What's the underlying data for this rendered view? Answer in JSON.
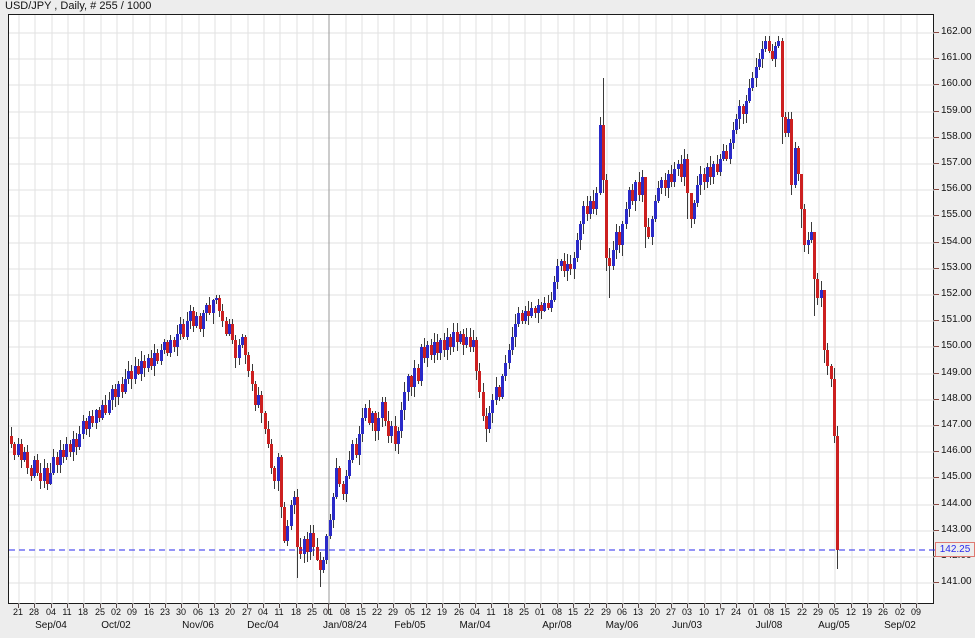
{
  "window": {
    "title": "USD/JPY , Daily, # 255 / 1000"
  },
  "colors": {
    "background": "#ededed",
    "plot_background": "#ffffff",
    "grid": "#e2e2e2",
    "separator": "#9a9a9a",
    "border": "#1c1c1c",
    "up": "#2a2ac8",
    "down": "#cc2020",
    "wick": "#3a3a3a",
    "axis_text": "#111111",
    "price_line": "#2a2aee",
    "price_label_border": "#df7a72"
  },
  "y_axis": {
    "max": 162,
    "min": 141,
    "labels": [
      "162.00",
      "161.00",
      "160.00",
      "159.00",
      "158.00",
      "157.00",
      "156.00",
      "155.00",
      "154.00",
      "153.00",
      "152.00",
      "151.00",
      "150.00",
      "149.00",
      "148.00",
      "147.00",
      "146.00",
      "145.00",
      "144.00",
      "143.00",
      "142.00",
      "141.00"
    ]
  },
  "x_axis": {
    "day_labels": [
      "21",
      "28",
      "04",
      "11",
      "18",
      "25",
      "02",
      "09",
      "16",
      "23",
      "30",
      "06",
      "13",
      "20",
      "27",
      "04",
      "11",
      "18",
      "25",
      "01",
      "08",
      "15",
      "22",
      "29",
      "05",
      "12",
      "19",
      "26",
      "04",
      "11",
      "18",
      "25",
      "01",
      "08",
      "15",
      "22",
      "29",
      "06",
      "13",
      "20",
      "27",
      "03",
      "10",
      "17",
      "24",
      "01",
      "08",
      "15",
      "22",
      "29",
      "05",
      "12",
      "19",
      "26",
      "02",
      "09"
    ],
    "month_labels": [
      {
        "label": "Sep/04",
        "tick": 2
      },
      {
        "label": "Oct/02",
        "tick": 6
      },
      {
        "label": "Nov/06",
        "tick": 11
      },
      {
        "label": "Dec/04",
        "tick": 15
      },
      {
        "label": "Jan/08/24",
        "tick": 20
      },
      {
        "label": "Feb/05",
        "tick": 24
      },
      {
        "label": "Mar/04",
        "tick": 28
      },
      {
        "label": "Apr/08",
        "tick": 33
      },
      {
        "label": "May/06",
        "tick": 37
      },
      {
        "label": "Jun/03",
        "tick": 41
      },
      {
        "label": "Jul/08",
        "tick": 46
      },
      {
        "label": "Aug/05",
        "tick": 50
      },
      {
        "label": "Sep/02",
        "tick": 54
      }
    ]
  },
  "price_marker": {
    "value": 142.25,
    "label": "142.25"
  },
  "chart_data": {
    "type": "candlestick",
    "symbol": "USD/JPY",
    "timeframe": "Daily",
    "bars_counter": "# 255 / 1000",
    "bars_shown": 255,
    "ylim": [
      140.2,
      162.9
    ],
    "year_separator_tick": 19,
    "first_open": 146.6,
    "closes": [
      146.3,
      145.9,
      146.3,
      145.7,
      146.0,
      145.4,
      145.1,
      145.7,
      145.2,
      144.9,
      145.4,
      144.8,
      145.2,
      145.8,
      145.5,
      146.1,
      145.8,
      146.3,
      146.0,
      146.5,
      146.2,
      146.7,
      147.2,
      146.9,
      147.4,
      147.1,
      147.6,
      147.3,
      147.8,
      147.5,
      148.0,
      148.4,
      148.1,
      148.6,
      148.3,
      148.8,
      149.1,
      148.8,
      149.3,
      149.0,
      149.5,
      149.2,
      149.6,
      149.3,
      149.8,
      149.5,
      149.9,
      150.2,
      149.8,
      150.3,
      150.0,
      150.5,
      150.9,
      150.4,
      151.0,
      151.4,
      150.8,
      151.2,
      150.7,
      151.3,
      151.6,
      151.3,
      151.8,
      151.9,
      151.4,
      151.0,
      150.5,
      150.9,
      150.3,
      149.6,
      150.1,
      150.4,
      149.7,
      149.1,
      148.6,
      147.8,
      148.2,
      147.5,
      146.9,
      146.3,
      145.4,
      144.9,
      145.8,
      143.9,
      142.6,
      143.2,
      144.0,
      144.3,
      142.4,
      142.1,
      142.7,
      142.2,
      142.9,
      142.4,
      141.9,
      141.5,
      141.9,
      142.8,
      143.4,
      144.3,
      145.4,
      144.8,
      144.4,
      145.1,
      145.7,
      146.3,
      145.9,
      146.7,
      147.3,
      147.7,
      147.1,
      147.5,
      146.8,
      147.3,
      147.9,
      147.2,
      146.6,
      147.0,
      146.3,
      146.8,
      147.6,
      148.3,
      148.9,
      148.5,
      149.2,
      148.7,
      150.0,
      149.6,
      150.1,
      149.7,
      150.2,
      149.8,
      150.3,
      149.9,
      150.4,
      150.0,
      150.6,
      150.2,
      150.5,
      150.1,
      150.4,
      150.0,
      150.3,
      149.1,
      148.3,
      147.4,
      146.9,
      147.5,
      148.0,
      148.5,
      148.1,
      148.9,
      149.4,
      149.9,
      150.4,
      150.9,
      151.3,
      151.0,
      151.4,
      151.2,
      151.5,
      151.3,
      151.6,
      151.4,
      151.7,
      151.5,
      151.8,
      152.5,
      153.1,
      153.3,
      152.9,
      153.2,
      153.0,
      153.4,
      154.1,
      154.7,
      155.4,
      155.1,
      155.6,
      155.3,
      155.9,
      158.5,
      156.4,
      153.4,
      153.1,
      153.7,
      154.4,
      153.9,
      154.7,
      155.3,
      156.0,
      155.6,
      156.3,
      155.8,
      156.5,
      154.6,
      154.2,
      154.9,
      155.6,
      156.1,
      156.4,
      156.1,
      156.6,
      156.3,
      156.8,
      157.0,
      156.5,
      157.2,
      155.9,
      154.9,
      155.5,
      156.2,
      156.6,
      156.3,
      156.9,
      156.5,
      157.0,
      156.7,
      157.2,
      157.5,
      157.2,
      157.8,
      158.3,
      158.7,
      159.2,
      158.9,
      159.4,
      159.9,
      160.3,
      160.7,
      161.0,
      161.4,
      161.7,
      161.3,
      161.0,
      161.5,
      161.7,
      158.8,
      158.2,
      158.7,
      156.2,
      157.6,
      156.6,
      155.3,
      153.9,
      154.1,
      154.4,
      152.6,
      151.9,
      152.2,
      149.9,
      149.3,
      148.8,
      146.6,
      142.25
    ],
    "wick_overrides": {
      "11": [
        145.6,
        144.55
      ],
      "83": [
        145.9,
        143.5
      ],
      "88": [
        144.6,
        141.2
      ],
      "95": [
        142.2,
        140.85
      ],
      "146": [
        147.7,
        146.4
      ],
      "182": [
        160.3,
        155.9
      ],
      "183": [
        156.6,
        152.9
      ],
      "184": [
        153.8,
        151.9
      ],
      "195": [
        156.0,
        153.8
      ],
      "208": [
        157.4,
        154.9
      ],
      "209": [
        155.3,
        154.55
      ],
      "237": [
        161.8,
        157.75
      ],
      "243": [
        155.6,
        154.55
      ],
      "247": [
        153.0,
        151.2
      ],
      "250": [
        152.1,
        149.4
      ],
      "254": [
        147.0,
        141.55
      ]
    }
  }
}
